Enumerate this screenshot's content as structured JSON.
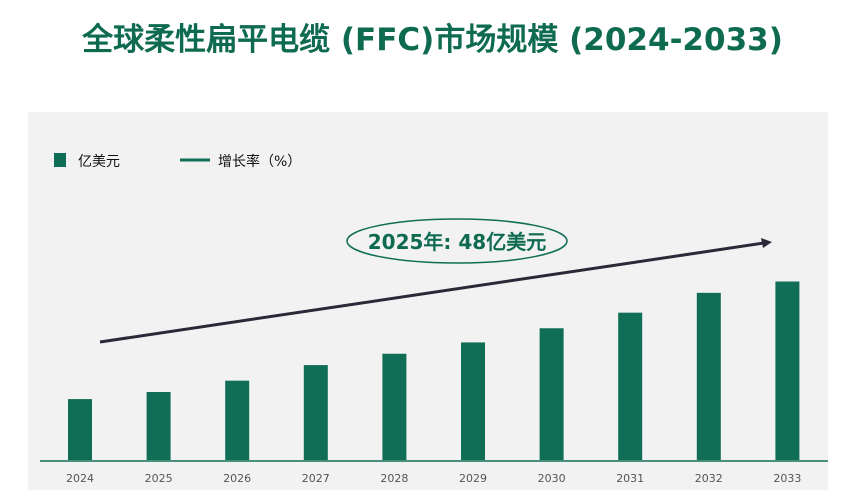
{
  "title": "全球柔性扁平电缆 (FFC)市场规模 (2024-2033)",
  "colors": {
    "bar": "#0f6e55",
    "arrow": "#2b2838",
    "title": "#0e6b50"
  },
  "chart_data": {
    "type": "bar",
    "title": "全球柔性扁平电缆 (FFC)市场规模 (2024-2033)",
    "categories": [
      "2024",
      "2025",
      "2026",
      "2027",
      "2028",
      "2029",
      "2030",
      "2031",
      "2032",
      "2033"
    ],
    "series": [
      {
        "name": "亿美元",
        "values": [
          43,
          48,
          56,
          67,
          75,
          83,
          93,
          104,
          118,
          126
        ]
      }
    ],
    "legend": [
      "亿美元",
      "增长率（%）"
    ],
    "legend_position": "top-left",
    "annotation": "2025年: 48亿美元",
    "ylim": [
      0,
      140
    ],
    "grid": false
  }
}
